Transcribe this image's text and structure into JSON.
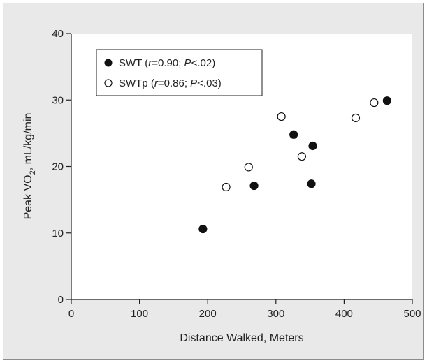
{
  "colors": {
    "panel_background": "#e9e9e9",
    "plot_background": "#ffffff",
    "axis": "#222222",
    "marker_filled": "#111111",
    "marker_open_fill": "#ffffff"
  },
  "chart_data": {
    "type": "scatter",
    "title": "",
    "xlabel": "Distance Walked, Meters",
    "ylabel": {
      "prefix": "Peak VO",
      "subscript": "2",
      "suffix": ", mL/kg/min"
    },
    "xlim": [
      0,
      500
    ],
    "ylim": [
      0,
      40
    ],
    "xticks": [
      0,
      100,
      200,
      300,
      400,
      500
    ],
    "yticks": [
      0,
      10,
      20,
      30,
      40
    ],
    "grid": false,
    "legend_placement": "top-left",
    "series": [
      {
        "name": "SWT",
        "marker": "filled-circle",
        "stats": {
          "r_symbol": "r",
          "r": "0.90",
          "p_symbol": "P",
          "p": "<.02"
        },
        "points": [
          {
            "x": 193,
            "y": 10.6
          },
          {
            "x": 268,
            "y": 17.1
          },
          {
            "x": 326,
            "y": 24.8
          },
          {
            "x": 352,
            "y": 17.4
          },
          {
            "x": 354,
            "y": 23.1
          },
          {
            "x": 463,
            "y": 29.9
          }
        ]
      },
      {
        "name": "SWTp",
        "marker": "open-circle",
        "stats": {
          "r_symbol": "r",
          "r": "0.86",
          "p_symbol": "P",
          "p": "<.03"
        },
        "points": [
          {
            "x": 227,
            "y": 16.9
          },
          {
            "x": 260,
            "y": 19.9
          },
          {
            "x": 308,
            "y": 27.5
          },
          {
            "x": 338,
            "y": 21.5
          },
          {
            "x": 417,
            "y": 27.3
          },
          {
            "x": 444,
            "y": 29.6
          }
        ]
      }
    ]
  }
}
